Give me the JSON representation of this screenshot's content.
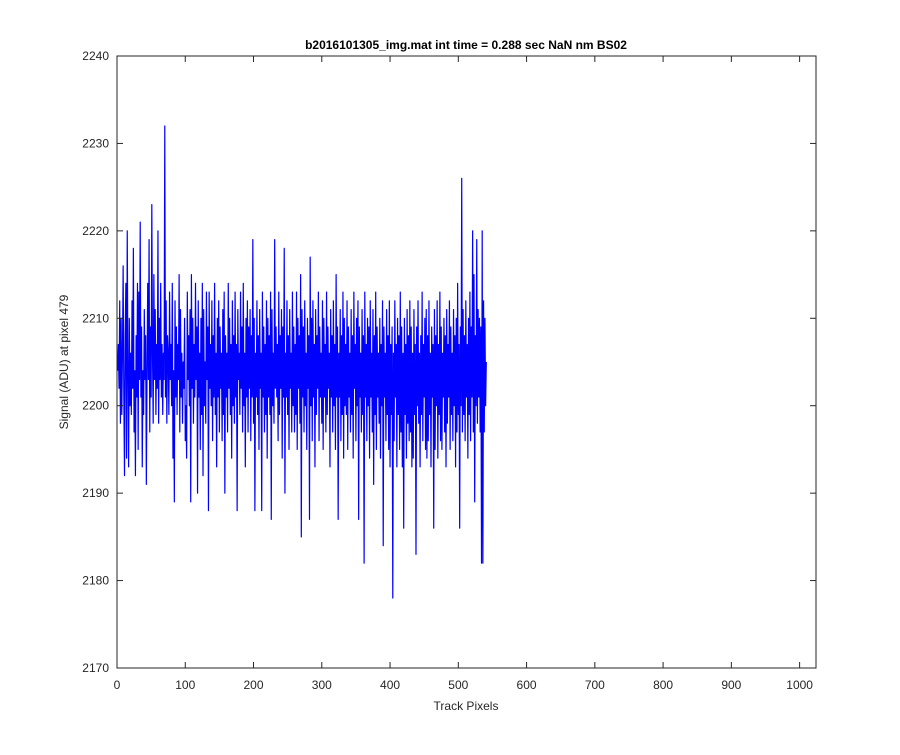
{
  "chart_data": {
    "type": "line",
    "title": "b2016101305_img.mat int time = 0.288 sec  NaN nm BS02",
    "xlabel": "Track Pixels",
    "ylabel": "Signal (ADU) at pixel 479",
    "xlim": [
      0,
      1024
    ],
    "ylim": [
      2170,
      2240
    ],
    "xticks": [
      0,
      100,
      200,
      300,
      400,
      500,
      600,
      700,
      800,
      900,
      1000
    ],
    "yticks": [
      2170,
      2180,
      2190,
      2200,
      2210,
      2220,
      2230,
      2240
    ],
    "grid": false,
    "legend": "none",
    "series": [
      {
        "color": "#0000ff",
        "x_start": 1,
        "x_step": 1,
        "values": [
          2204,
          2207,
          2202,
          2212,
          2198,
          2210,
          2199,
          2206,
          2216,
          2201,
          2192,
          2208,
          2214,
          2194,
          2220,
          2204,
          2193,
          2210,
          2200,
          2206,
          2199,
          2212,
          2202,
          2218,
          2197,
          2204,
          2192,
          2208,
          2201,
          2214,
          2195,
          2213,
          2203,
          2221,
          2201,
          2209,
          2193,
          2204,
          2199,
          2211,
          2203,
          2208,
          2191,
          2204,
          2214,
          2203,
          2219,
          2197,
          2209,
          2201,
          2223,
          2206,
          2198,
          2215,
          2203,
          2211,
          2199,
          2207,
          2202,
          2220,
          2198,
          2210,
          2203,
          2214,
          2201,
          2207,
          2199,
          2206,
          2203,
          2232,
          2201,
          2212,
          2198,
          2208,
          2206,
          2199,
          2213,
          2203,
          2207,
          2200,
          2214,
          2194,
          2204,
          2189,
          2212,
          2201,
          2209,
          2199,
          2207,
          2203,
          2215,
          2197,
          2211,
          2201,
          2206,
          2198,
          2205,
          2202,
          2210,
          2196,
          2200,
          2194,
          2213,
          2203,
          2208,
          2200,
          2211,
          2189,
          2215,
          2202,
          2210,
          2198,
          2207,
          2201,
          2214,
          2203,
          2209,
          2190,
          2212,
          2201,
          2206,
          2195,
          2210,
          2199,
          2214,
          2192,
          2211,
          2200,
          2205,
          2198,
          2213,
          2203,
          2209,
          2188,
          2213,
          2202,
          2207,
          2200,
          2212,
          2196,
          2208,
          2201,
          2214,
          2199,
          2206,
          2193,
          2210,
          2201,
          2212,
          2197,
          2209,
          2202,
          2206,
          2196,
          2211,
          2199,
          2213,
          2190,
          2208,
          2201,
          2206,
          2197,
          2214,
          2202,
          2210,
          2199,
          2207,
          2194,
          2212,
          2200,
          2208,
          2198,
          2213,
          2201,
          2207,
          2188,
          2211,
          2203,
          2206,
          2199,
          2213,
          2202,
          2209,
          2197,
          2214,
          2200,
          2206,
          2193,
          2210,
          2201,
          2212,
          2197,
          2209,
          2202,
          2211,
          2196,
          2208,
          2201,
          2219,
          2198,
          2210,
          2188,
          2206,
          2201,
          2212,
          2199,
          2208,
          2195,
          2211,
          2202,
          2206,
          2188,
          2213,
          2201,
          2209,
          2197,
          2207,
          2199,
          2212,
          2194,
          2210,
          2201,
          2208,
          2199,
          2213,
          2187,
          2211,
          2200,
          2206,
          2198,
          2219,
          2202,
          2209,
          2201,
          2207,
          2196,
          2213,
          2199,
          2208,
          2202,
          2211,
          2194,
          2209,
          2201,
          2218,
          2190,
          2206,
          2201,
          2212,
          2199,
          2208,
          2195,
          2211,
          2202,
          2206,
          2197,
          2213,
          2200,
          2209,
          2197,
          2207,
          2199,
          2213,
          2195,
          2210,
          2202,
          2208,
          2198,
          2215,
          2185,
          2211,
          2201,
          2209,
          2197,
          2212,
          2200,
          2206,
          2195,
          2210,
          2202,
          2208,
          2187,
          2217,
          2200,
          2210,
          2196,
          2212,
          2201,
          2207,
          2193,
          2211,
          2199,
          2208,
          2202,
          2213,
          2196,
          2209,
          2201,
          2206,
          2198,
          2212,
          2195,
          2210,
          2201,
          2207,
          2197,
          2213,
          2199,
          2209,
          2202,
          2206,
          2193,
          2211,
          2201,
          2208,
          2197,
          2212,
          2200,
          2207,
          2195,
          2215,
          2201,
          2209,
          2187,
          2206,
          2201,
          2211,
          2196,
          2208,
          2199,
          2213,
          2194,
          2210,
          2200,
          2207,
          2199,
          2212,
          2195,
          2209,
          2201,
          2206,
          2197,
          2211,
          2199,
          2208,
          2194,
          2213,
          2202,
          2207,
          2196,
          2210,
          2200,
          2212,
          2187,
          2209,
          2201,
          2206,
          2197,
          2211,
          2199,
          2208,
          2182,
          2213,
          2201,
          2207,
          2196,
          2210,
          2200,
          2209,
          2194,
          2212,
          2201,
          2206,
          2197,
          2211,
          2191,
          2208,
          2199,
          2213,
          2195,
          2209,
          2201,
          2206,
          2198,
          2210,
          2194,
          2207,
          2200,
          2212,
          2184,
          2209,
          2201,
          2206,
          2196,
          2211,
          2199,
          2208,
          2195,
          2212,
          2193,
          2207,
          2199,
          2209,
          2178,
          2206,
          2196,
          2212,
          2201,
          2207,
          2193,
          2210,
          2199,
          2208,
          2195,
          2213,
          2197,
          2209,
          2193,
          2206,
          2186,
          2210,
          2199,
          2207,
          2194,
          2211,
          2198,
          2208,
          2196,
          2212,
          2197,
          2209,
          2193,
          2206,
          2194,
          2211,
          2199,
          2207,
          2183,
          2209,
          2200,
          2212,
          2198,
          2206,
          2193,
          2208,
          2199,
          2213,
          2196,
          2207,
          2201,
          2210,
          2195,
          2211,
          2194,
          2208,
          2196,
          2212,
          2199,
          2206,
          2193,
          2209,
          2201,
          2207,
          2186,
          2211,
          2195,
          2208,
          2200,
          2212,
          2194,
          2207,
          2199,
          2213,
          2196,
          2209,
          2195,
          2206,
          2201,
          2210,
          2197,
          2208,
          2193,
          2211,
          2198,
          2207,
          2201,
          2212,
          2195,
          2209,
          2199,
          2206,
          2196,
          2211,
          2200,
          2208,
          2193,
          2210,
          2197,
          2214,
          2199,
          2207,
          2186,
          2209,
          2200,
          2226,
          2197,
          2211,
          2199,
          2208,
          2196,
          2212,
          2201,
          2207,
          2194,
          2210,
          2199,
          2213,
          2196,
          2209,
          2201,
          2220,
          2197,
          2215,
          2189,
          2208,
          2200,
          2219,
          2198,
          2211,
          2201,
          2210,
          2197,
          2209,
          2182,
          2220,
          2182,
          2212,
          2197,
          2210,
          2200,
          2205
        ]
      }
    ]
  }
}
